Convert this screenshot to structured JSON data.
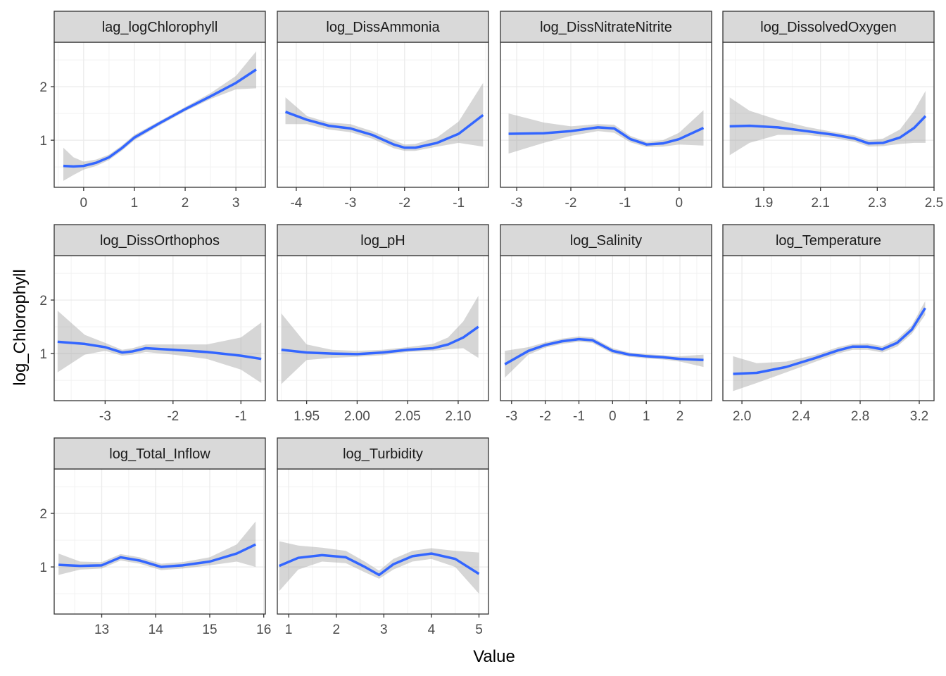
{
  "axis_titles": {
    "x": "Value",
    "y": "log_Chlorophyll"
  },
  "chart_data": [
    {
      "type": "line",
      "title": "lag_logChlorophyll",
      "color": "#3366ff",
      "band_color": "#999999",
      "x": [
        -0.4,
        -0.2,
        0,
        0.25,
        0.5,
        0.75,
        1,
        1.5,
        2,
        2.5,
        3,
        3.4
      ],
      "values": [
        0.52,
        0.51,
        0.52,
        0.58,
        0.68,
        0.85,
        1.05,
        1.32,
        1.58,
        1.82,
        2.07,
        2.32
      ],
      "lower": [
        0.24,
        0.35,
        0.45,
        0.52,
        0.63,
        0.8,
        1.0,
        1.28,
        1.54,
        1.77,
        1.95,
        1.97
      ],
      "upper": [
        0.86,
        0.68,
        0.6,
        0.64,
        0.73,
        0.9,
        1.1,
        1.36,
        1.62,
        1.88,
        2.2,
        2.66
      ],
      "xlim": [
        -0.58,
        3.58
      ],
      "xticks": [
        0,
        1,
        2,
        3
      ],
      "ylim": [
        0.12,
        2.83
      ],
      "yticks": [
        1,
        2
      ]
    },
    {
      "type": "line",
      "title": "log_DissAmmonia",
      "color": "#3366ff",
      "band_color": "#999999",
      "x": [
        -4.2,
        -3.8,
        -3.4,
        -3,
        -2.6,
        -2.2,
        -2,
        -1.8,
        -1.4,
        -1,
        -0.55
      ],
      "values": [
        1.53,
        1.38,
        1.27,
        1.22,
        1.1,
        0.92,
        0.86,
        0.86,
        0.95,
        1.12,
        1.47
      ],
      "lower": [
        1.3,
        1.3,
        1.2,
        1.15,
        1.03,
        0.85,
        0.8,
        0.8,
        0.88,
        0.95,
        0.88
      ],
      "upper": [
        1.8,
        1.45,
        1.33,
        1.3,
        1.17,
        1.0,
        0.92,
        0.93,
        1.05,
        1.35,
        2.07
      ],
      "xlim": [
        -4.35,
        -0.45
      ],
      "xticks": [
        -4,
        -3,
        -2,
        -1
      ],
      "ylim": [
        0.12,
        2.83
      ],
      "yticks": [
        1,
        2
      ]
    },
    {
      "type": "line",
      "title": "log_DissNitrateNitrite",
      "color": "#3366ff",
      "band_color": "#999999",
      "x": [
        -3.15,
        -2.5,
        -2,
        -1.5,
        -1.2,
        -0.9,
        -0.6,
        -0.3,
        0,
        0.45
      ],
      "values": [
        1.12,
        1.13,
        1.17,
        1.24,
        1.22,
        1.02,
        0.92,
        0.94,
        1.02,
        1.23
      ],
      "lower": [
        0.75,
        0.95,
        1.08,
        1.17,
        1.14,
        0.96,
        0.87,
        0.88,
        0.92,
        0.9
      ],
      "upper": [
        1.5,
        1.33,
        1.26,
        1.3,
        1.29,
        1.08,
        0.97,
        1.0,
        1.14,
        1.56
      ],
      "xlim": [
        -3.3,
        0.6
      ],
      "xticks": [
        -3,
        -2,
        -1,
        0
      ],
      "ylim": [
        0.12,
        2.83
      ],
      "yticks": [
        1,
        2
      ]
    },
    {
      "type": "line",
      "title": "log_DissolvedOxygen",
      "color": "#3366ff",
      "band_color": "#999999",
      "x": [
        1.78,
        1.85,
        1.95,
        2.05,
        2.15,
        2.22,
        2.27,
        2.32,
        2.38,
        2.43,
        2.47
      ],
      "values": [
        1.26,
        1.27,
        1.24,
        1.17,
        1.1,
        1.03,
        0.94,
        0.95,
        1.05,
        1.23,
        1.45
      ],
      "lower": [
        0.72,
        0.95,
        1.1,
        1.1,
        1.04,
        0.97,
        0.88,
        0.89,
        0.93,
        0.95,
        0.95
      ],
      "upper": [
        1.8,
        1.55,
        1.38,
        1.25,
        1.15,
        1.09,
        1.0,
        1.03,
        1.2,
        1.55,
        1.92
      ],
      "xlim": [
        1.756,
        2.5
      ],
      "xticks": [
        1.9,
        2.1,
        2.3,
        2.5
      ],
      "ylim": [
        0.12,
        2.83
      ],
      "yticks": [
        1,
        2
      ]
    },
    {
      "type": "line",
      "title": "log_DissOrthophos",
      "color": "#3366ff",
      "band_color": "#999999",
      "x": [
        -3.7,
        -3.3,
        -3,
        -2.75,
        -2.6,
        -2.4,
        -2,
        -1.5,
        -1,
        -0.7
      ],
      "values": [
        1.22,
        1.18,
        1.12,
        1.02,
        1.04,
        1.1,
        1.07,
        1.03,
        0.96,
        0.9
      ],
      "lower": [
        0.65,
        0.98,
        1.05,
        0.96,
        0.98,
        1.03,
        0.98,
        0.9,
        0.7,
        0.45
      ],
      "upper": [
        1.8,
        1.35,
        1.2,
        1.07,
        1.1,
        1.17,
        1.17,
        1.17,
        1.3,
        1.58
      ],
      "xlim": [
        -3.75,
        -0.64
      ],
      "xticks": [
        -3,
        -2,
        -1
      ],
      "ylim": [
        0.12,
        2.83
      ],
      "yticks": [
        1,
        2
      ]
    },
    {
      "type": "line",
      "title": "log_pH",
      "color": "#3366ff",
      "band_color": "#999999",
      "x": [
        1.925,
        1.95,
        1.975,
        2.0,
        2.025,
        2.05,
        2.075,
        2.09,
        2.105,
        2.12
      ],
      "values": [
        1.07,
        1.02,
        1.0,
        0.99,
        1.02,
        1.07,
        1.1,
        1.17,
        1.3,
        1.5
      ],
      "lower": [
        0.43,
        0.88,
        0.92,
        0.94,
        0.97,
        1.03,
        1.05,
        1.08,
        1.1,
        0.92
      ],
      "upper": [
        1.75,
        1.17,
        1.07,
        1.05,
        1.07,
        1.12,
        1.18,
        1.3,
        1.6,
        2.08
      ],
      "xlim": [
        1.921,
        2.13
      ],
      "xticks": [
        1.95,
        {
          "value": 2,
          "label": "2.00"
        },
        2.05,
        {
          "value": 2.1,
          "label": "2.10"
        }
      ],
      "ylim": [
        0.12,
        2.83
      ],
      "yticks": [
        1,
        2
      ]
    },
    {
      "type": "line",
      "title": "log_Salinity",
      "color": "#3366ff",
      "band_color": "#999999",
      "x": [
        -3.2,
        -2.5,
        -2,
        -1.5,
        -1,
        -0.6,
        0,
        0.5,
        1,
        1.5,
        2,
        2.7
      ],
      "values": [
        0.8,
        1.05,
        1.16,
        1.23,
        1.27,
        1.25,
        1.05,
        0.98,
        0.95,
        0.93,
        0.9,
        0.88
      ],
      "lower": [
        0.55,
        0.98,
        1.11,
        1.18,
        1.22,
        1.2,
        1.0,
        0.94,
        0.91,
        0.89,
        0.85,
        0.75
      ],
      "upper": [
        1.05,
        1.12,
        1.21,
        1.28,
        1.32,
        1.3,
        1.1,
        1.02,
        0.99,
        0.97,
        0.95,
        0.98
      ],
      "xlim": [
        -3.33,
        2.94
      ],
      "xticks": [
        -3,
        -2,
        -1,
        0,
        1,
        2
      ],
      "ylim": [
        0.12,
        2.83
      ],
      "yticks": [
        1,
        2
      ]
    },
    {
      "type": "line",
      "title": "log_Temperature",
      "color": "#3366ff",
      "band_color": "#999999",
      "x": [
        1.94,
        2.1,
        2.3,
        2.5,
        2.65,
        2.75,
        2.85,
        2.95,
        3.05,
        3.15,
        3.24
      ],
      "values": [
        0.62,
        0.64,
        0.75,
        0.92,
        1.06,
        1.13,
        1.13,
        1.08,
        1.2,
        1.45,
        1.85
      ],
      "lower": [
        0.3,
        0.45,
        0.65,
        0.85,
        1.0,
        1.07,
        1.07,
        1.02,
        1.13,
        1.37,
        1.72
      ],
      "upper": [
        0.95,
        0.82,
        0.85,
        0.98,
        1.12,
        1.18,
        1.19,
        1.14,
        1.27,
        1.53,
        1.98
      ],
      "xlim": [
        1.871,
        3.3
      ],
      "xticks": [
        {
          "value": 2,
          "label": "2.0"
        },
        2.4,
        2.8,
        3.2
      ],
      "ylim": [
        0.12,
        2.83
      ],
      "yticks": [
        1,
        2
      ]
    },
    {
      "type": "line",
      "title": "log_Total_Inflow",
      "color": "#3366ff",
      "band_color": "#999999",
      "x": [
        12.2,
        12.6,
        13.0,
        13.35,
        13.7,
        14.1,
        14.5,
        15,
        15.5,
        15.85
      ],
      "values": [
        1.04,
        1.02,
        1.03,
        1.18,
        1.12,
        1.0,
        1.03,
        1.1,
        1.25,
        1.42
      ],
      "lower": [
        0.85,
        0.95,
        0.97,
        1.12,
        1.06,
        0.94,
        0.97,
        1.03,
        1.1,
        1.0
      ],
      "upper": [
        1.25,
        1.1,
        1.09,
        1.24,
        1.18,
        1.06,
        1.09,
        1.18,
        1.42,
        1.85
      ],
      "xlim": [
        12.12,
        16.03
      ],
      "xticks": [
        13,
        14,
        15,
        16
      ],
      "ylim": [
        0.12,
        2.83
      ],
      "yticks": [
        1,
        2
      ]
    },
    {
      "type": "line",
      "title": "log_Turbidity",
      "color": "#3366ff",
      "band_color": "#999999",
      "x": [
        0.8,
        1.2,
        1.7,
        2.2,
        2.6,
        2.9,
        3.2,
        3.6,
        4.0,
        4.5,
        5.0
      ],
      "values": [
        1.02,
        1.17,
        1.22,
        1.18,
        1.0,
        0.85,
        1.05,
        1.2,
        1.25,
        1.15,
        0.87
      ],
      "lower": [
        0.55,
        0.95,
        1.1,
        1.07,
        0.9,
        0.78,
        0.95,
        1.1,
        1.15,
        1.0,
        0.5
      ],
      "upper": [
        1.48,
        1.4,
        1.36,
        1.3,
        1.1,
        0.93,
        1.15,
        1.3,
        1.35,
        1.3,
        1.27
      ],
      "xlim": [
        0.76,
        5.2
      ],
      "xticks": [
        1,
        2,
        3,
        4,
        5
      ],
      "ylim": [
        0.12,
        2.83
      ],
      "yticks": [
        1,
        2
      ]
    }
  ]
}
